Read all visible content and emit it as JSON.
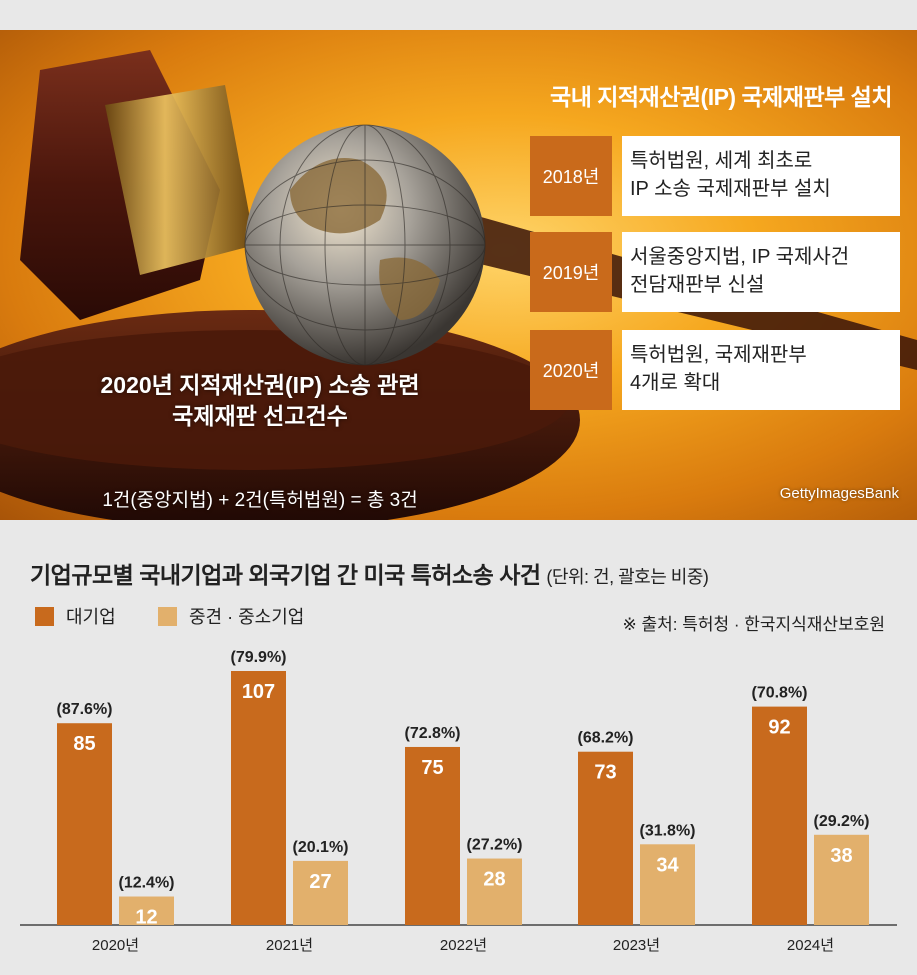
{
  "hero": {
    "title": "국내 지적재산권(IP) 국제재판부 설치",
    "timeline": [
      {
        "year": "2018년",
        "lines": [
          "특허법원, 세계 최초로",
          "IP 소송 국제재판부 설치"
        ]
      },
      {
        "year": "2019년",
        "lines": [
          "서울중앙지법, IP 국제사건",
          "전담재판부 신설"
        ]
      },
      {
        "year": "2020년",
        "lines": [
          "특허법원, 국제재판부",
          "4개로 확대"
        ]
      }
    ],
    "ip_title": [
      "2020년 지적재산권(IP) 소송 관련",
      "국제재판 선고건수"
    ],
    "ip_sub": "1건(중앙지법) + 2건(특허법원) = 총 3건",
    "credit": "GettyImagesBank"
  },
  "chart": {
    "title": "기업규모별 국내기업과 외국기업 간 미국 특허소송 사건",
    "unit": "(단위: 건, 괄호는 비중)",
    "source": "※ 출처: 특허청 · 한국지식재산보호원"
  },
  "chart_data": {
    "type": "bar",
    "categories": [
      "2020년",
      "2021년",
      "2022년",
      "2023년",
      "2024년"
    ],
    "series": [
      {
        "name": "대기업",
        "color": "#c86a1d",
        "values": [
          85,
          107,
          75,
          73,
          92
        ],
        "shares": [
          "(87.6%)",
          "(79.9%)",
          "(72.8%)",
          "(68.2%)",
          "(70.8%)"
        ]
      },
      {
        "name": "중견 · 중소기업",
        "color": "#e2b06c",
        "values": [
          12,
          27,
          28,
          34,
          38
        ],
        "shares": [
          "(12.4%)",
          "(20.1%)",
          "(27.2%)",
          "(31.8%)",
          "(29.2%)"
        ]
      }
    ],
    "ylim": [
      0,
      107
    ]
  }
}
